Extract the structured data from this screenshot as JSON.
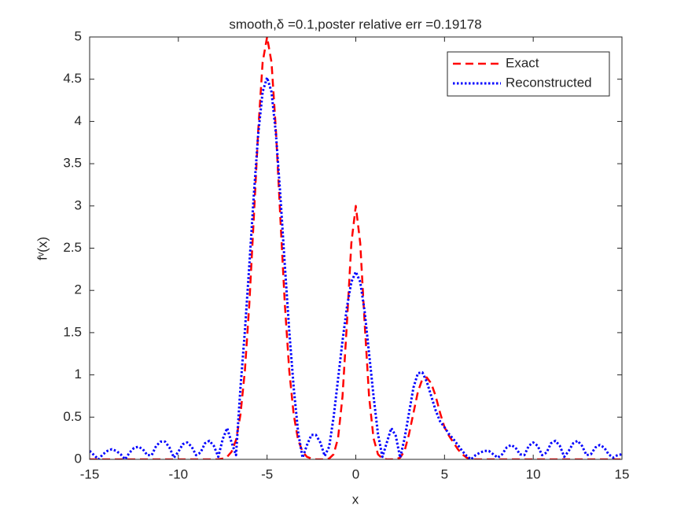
{
  "chart_data": {
    "type": "line",
    "title": "smooth,δ =0.1,poster relative err =0.19178",
    "xlabel": "x",
    "ylabel": "fᵛ(x)",
    "xlim": [
      -15,
      15
    ],
    "ylim": [
      0,
      5
    ],
    "xticks": [
      -15,
      -10,
      -5,
      0,
      5,
      10,
      15
    ],
    "yticks": [
      0,
      0.5,
      1,
      1.5,
      2,
      2.5,
      3,
      3.5,
      4,
      4.5,
      5
    ],
    "legend_position": "upper-right",
    "x": [
      -15,
      -14.75,
      -14.5,
      -14.25,
      -14,
      -13.75,
      -13.5,
      -13.25,
      -13,
      -12.75,
      -12.5,
      -12.25,
      -12,
      -11.75,
      -11.5,
      -11.25,
      -11,
      -10.75,
      -10.5,
      -10.25,
      -10,
      -9.75,
      -9.5,
      -9.25,
      -9,
      -8.75,
      -8.5,
      -8.25,
      -8,
      -7.75,
      -7.5,
      -7.25,
      -7,
      -6.75,
      -6.5,
      -6.25,
      -6,
      -5.75,
      -5.5,
      -5.25,
      -5,
      -4.75,
      -4.5,
      -4.25,
      -4,
      -3.75,
      -3.5,
      -3.25,
      -3,
      -2.75,
      -2.5,
      -2.25,
      -2,
      -1.75,
      -1.5,
      -1.25,
      -1,
      -0.75,
      -0.5,
      -0.25,
      0,
      0.25,
      0.5,
      0.75,
      1,
      1.25,
      1.5,
      1.75,
      2,
      2.25,
      2.5,
      2.75,
      3,
      3.25,
      3.5,
      3.75,
      4,
      4.25,
      4.5,
      4.75,
      5,
      5.25,
      5.5,
      5.75,
      6,
      6.25,
      6.5,
      6.75,
      7,
      7.25,
      7.5,
      7.75,
      8,
      8.25,
      8.5,
      8.75,
      9,
      9.25,
      9.5,
      9.75,
      10,
      10.25,
      10.5,
      10.75,
      11,
      11.25,
      11.5,
      11.75,
      12,
      12.25,
      12.5,
      12.75,
      13,
      13.25,
      13.5,
      13.75,
      14,
      14.25,
      14.5,
      14.75,
      15
    ],
    "series": [
      {
        "name": "Exact",
        "color": "#ff0000",
        "style": "dashed",
        "values": [
          0,
          0,
          0,
          0,
          0,
          0,
          0,
          0,
          0,
          0,
          0,
          0,
          0,
          0,
          0,
          0,
          0,
          0,
          0,
          0,
          0,
          0,
          0,
          0,
          0,
          0,
          0,
          0,
          0,
          0,
          0.01,
          0.03,
          0.09,
          0.23,
          0.53,
          1.05,
          1.84,
          2.85,
          3.89,
          4.7,
          5,
          4.7,
          3.89,
          2.85,
          1.84,
          1.05,
          0.53,
          0.23,
          0.09,
          0.03,
          0.01,
          0,
          0,
          0,
          0.01,
          0.06,
          0.25,
          0.74,
          1.61,
          2.56,
          3,
          2.56,
          1.61,
          0.74,
          0.25,
          0.06,
          0.01,
          0,
          0,
          0,
          0.02,
          0.1,
          0.3,
          0.55,
          0.8,
          0.95,
          0.97,
          0.9,
          0.75,
          0.55,
          0.38,
          0.28,
          0.2,
          0.12,
          0.06,
          0.02,
          0,
          0,
          0,
          0,
          0,
          0,
          0,
          0,
          0,
          0,
          0,
          0,
          0,
          0,
          0,
          0,
          0,
          0,
          0,
          0,
          0,
          0,
          0,
          0,
          0,
          0,
          0,
          0,
          0,
          0,
          0,
          0,
          0,
          0,
          0
        ]
      },
      {
        "name": "Reconstructed",
        "color": "#0000ff",
        "style": "dotted",
        "values": [
          0.1,
          0.05,
          0,
          0.06,
          0.1,
          0.12,
          0.1,
          0.06,
          0,
          0.08,
          0.135,
          0.15,
          0.12,
          0.05,
          0.05,
          0.16,
          0.21,
          0.21,
          0.14,
          0.02,
          0.09,
          0.18,
          0.2,
          0.15,
          0.05,
          0.08,
          0.19,
          0.22,
          0.16,
          0.03,
          0.24,
          0.37,
          0.2,
          0.05,
          0.85,
          1.52,
          2.3,
          3.12,
          3.85,
          4.35,
          4.52,
          4.35,
          3.85,
          3.12,
          2.3,
          1.52,
          0.85,
          0.32,
          0.02,
          0.17,
          0.29,
          0.29,
          0.2,
          0.04,
          0.15,
          0.5,
          0.95,
          1.4,
          1.8,
          2.1,
          2.22,
          2.1,
          1.75,
          1.25,
          0.75,
          0.3,
          0.03,
          0.2,
          0.37,
          0.28,
          0.02,
          0.25,
          0.55,
          0.85,
          1.02,
          1.03,
          0.92,
          0.75,
          0.58,
          0.45,
          0.38,
          0.3,
          0.24,
          0.17,
          0.1,
          0.04,
          0,
          0.05,
          0.08,
          0.1,
          0.1,
          0.06,
          0.02,
          0.06,
          0.14,
          0.17,
          0.14,
          0.06,
          0.05,
          0.16,
          0.2,
          0.16,
          0.05,
          0.08,
          0.19,
          0.22,
          0.16,
          0.03,
          0.1,
          0.19,
          0.22,
          0.16,
          0.05,
          0.06,
          0.14,
          0.17,
          0.14,
          0.06,
          0.02,
          0.05,
          0.06
        ]
      }
    ]
  }
}
